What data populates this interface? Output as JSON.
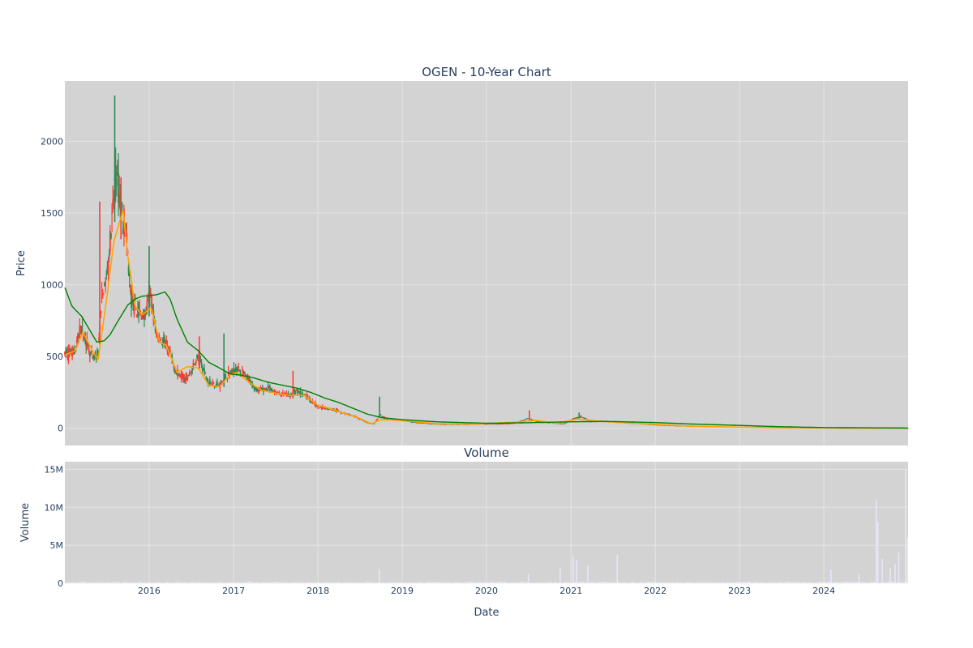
{
  "chart_data": [
    {
      "type": "candlestick",
      "title": "OGEN - 10-Year Chart",
      "ylabel": "Price",
      "ylim": [
        -120,
        2420
      ],
      "yticks": [
        0,
        500,
        1000,
        1500,
        2000
      ],
      "x_range": [
        "2015-01-01",
        "2024-12-31"
      ],
      "grid": true,
      "colors": {
        "up": "#2e8b57",
        "down": "#ff3b30",
        "ma_short": "#ffa500",
        "ma_long": "#008000",
        "background": "#d3d3d3"
      },
      "price_anchors": [
        [
          "2015-01-01",
          520
        ],
        [
          "2015-02-15",
          540
        ],
        [
          "2015-03-10",
          700
        ],
        [
          "2015-04-01",
          620
        ],
        [
          "2015-05-01",
          480
        ],
        [
          "2015-05-25",
          520
        ],
        [
          "2015-06-10",
          900
        ],
        [
          "2015-07-01",
          1050
        ],
        [
          "2015-07-25",
          1450
        ],
        [
          "2015-08-10",
          1800
        ],
        [
          "2015-09-01",
          1550
        ],
        [
          "2015-09-20",
          1400
        ],
        [
          "2015-10-15",
          900
        ],
        [
          "2015-11-15",
          800
        ],
        [
          "2015-12-15",
          780
        ],
        [
          "2016-01-05",
          950
        ],
        [
          "2016-02-01",
          650
        ],
        [
          "2016-03-15",
          580
        ],
        [
          "2016-05-01",
          380
        ],
        [
          "2016-06-15",
          350
        ],
        [
          "2016-08-01",
          500
        ],
        [
          "2016-09-15",
          320
        ],
        [
          "2016-11-01",
          300
        ],
        [
          "2016-12-01",
          360
        ],
        [
          "2017-01-15",
          420
        ],
        [
          "2017-03-01",
          350
        ],
        [
          "2017-04-15",
          260
        ],
        [
          "2017-06-01",
          280
        ],
        [
          "2017-07-15",
          240
        ],
        [
          "2017-09-01",
          230
        ],
        [
          "2017-10-01",
          260
        ],
        [
          "2017-11-15",
          220
        ],
        [
          "2018-01-01",
          150
        ],
        [
          "2018-02-01",
          140
        ],
        [
          "2018-03-15",
          130
        ],
        [
          "2018-05-01",
          100
        ],
        [
          "2018-06-15",
          80
        ],
        [
          "2018-08-01",
          40
        ],
        [
          "2018-09-01",
          30
        ],
        [
          "2018-09-25",
          90
        ],
        [
          "2018-11-01",
          60
        ],
        [
          "2018-12-15",
          60
        ],
        [
          "2019-03-01",
          40
        ],
        [
          "2019-06-01",
          30
        ],
        [
          "2019-09-01",
          28
        ],
        [
          "2019-12-01",
          30
        ],
        [
          "2020-03-01",
          30
        ],
        [
          "2020-05-01",
          35
        ],
        [
          "2020-07-01",
          70
        ],
        [
          "2020-08-15",
          45
        ],
        [
          "2020-10-01",
          40
        ],
        [
          "2020-12-01",
          30
        ],
        [
          "2021-01-15",
          70
        ],
        [
          "2021-02-15",
          80
        ],
        [
          "2021-04-01",
          50
        ],
        [
          "2021-07-01",
          45
        ],
        [
          "2021-10-01",
          35
        ],
        [
          "2022-01-01",
          25
        ],
        [
          "2022-06-01",
          15
        ],
        [
          "2023-01-01",
          10
        ],
        [
          "2023-06-01",
          5
        ],
        [
          "2024-01-01",
          3
        ],
        [
          "2024-06-01",
          2
        ],
        [
          "2024-12-31",
          1
        ]
      ],
      "ma_short": [
        [
          "2015-01-01",
          510
        ],
        [
          "2015-02-15",
          540
        ],
        [
          "2015-03-20",
          670
        ],
        [
          "2015-05-01",
          540
        ],
        [
          "2015-05-25",
          480
        ],
        [
          "2015-07-01",
          900
        ],
        [
          "2015-08-01",
          1300
        ],
        [
          "2015-09-10",
          1520
        ],
        [
          "2015-10-01",
          1200
        ],
        [
          "2015-11-01",
          850
        ],
        [
          "2015-12-01",
          790
        ],
        [
          "2016-01-10",
          840
        ],
        [
          "2016-02-15",
          600
        ],
        [
          "2016-03-15",
          580
        ],
        [
          "2016-05-01",
          390
        ],
        [
          "2016-06-15",
          430
        ],
        [
          "2016-08-01",
          420
        ],
        [
          "2016-09-15",
          300
        ],
        [
          "2016-11-01",
          290
        ],
        [
          "2016-12-15",
          370
        ],
        [
          "2017-01-15",
          390
        ],
        [
          "2017-03-01",
          330
        ],
        [
          "2017-05-01",
          265
        ],
        [
          "2017-07-01",
          245
        ],
        [
          "2017-09-01",
          230
        ],
        [
          "2017-11-01",
          230
        ],
        [
          "2018-01-01",
          160
        ],
        [
          "2018-03-01",
          135
        ],
        [
          "2018-05-01",
          100
        ],
        [
          "2018-07-01",
          70
        ],
        [
          "2018-08-20",
          30
        ],
        [
          "2018-10-01",
          60
        ],
        [
          "2019-01-01",
          55
        ],
        [
          "2019-06-01",
          32
        ],
        [
          "2019-12-01",
          30
        ],
        [
          "2020-06-01",
          45
        ],
        [
          "2020-08-01",
          55
        ],
        [
          "2020-11-01",
          35
        ],
        [
          "2021-02-01",
          65
        ],
        [
          "2021-05-01",
          50
        ],
        [
          "2021-10-01",
          35
        ],
        [
          "2022-06-01",
          15
        ],
        [
          "2023-01-01",
          8
        ],
        [
          "2023-06-01",
          4
        ],
        [
          "2024-01-01",
          3
        ],
        [
          "2024-12-31",
          1
        ]
      ],
      "ma_long": [
        [
          "2015-01-01",
          980
        ],
        [
          "2015-02-01",
          850
        ],
        [
          "2015-03-15",
          780
        ],
        [
          "2015-05-01",
          650
        ],
        [
          "2015-05-20",
          600
        ],
        [
          "2015-06-20",
          610
        ],
        [
          "2015-07-15",
          650
        ],
        [
          "2015-08-20",
          750
        ],
        [
          "2015-10-01",
          860
        ],
        [
          "2015-11-01",
          900
        ],
        [
          "2015-12-01",
          920
        ],
        [
          "2016-02-01",
          930
        ],
        [
          "2016-03-10",
          950
        ],
        [
          "2016-04-01",
          900
        ],
        [
          "2016-05-01",
          760
        ],
        [
          "2016-06-15",
          600
        ],
        [
          "2016-08-01",
          540
        ],
        [
          "2016-09-15",
          460
        ],
        [
          "2016-11-01",
          420
        ],
        [
          "2016-12-15",
          380
        ],
        [
          "2017-02-01",
          370
        ],
        [
          "2017-04-01",
          350
        ],
        [
          "2017-06-01",
          320
        ],
        [
          "2017-08-01",
          300
        ],
        [
          "2017-10-01",
          280
        ],
        [
          "2017-12-01",
          250
        ],
        [
          "2018-02-01",
          210
        ],
        [
          "2018-04-01",
          180
        ],
        [
          "2018-06-01",
          140
        ],
        [
          "2018-08-01",
          100
        ],
        [
          "2018-10-01",
          75
        ],
        [
          "2019-01-01",
          60
        ],
        [
          "2019-06-01",
          45
        ],
        [
          "2020-01-01",
          35
        ],
        [
          "2020-06-01",
          38
        ],
        [
          "2021-01-01",
          45
        ],
        [
          "2021-06-01",
          48
        ],
        [
          "2022-01-01",
          40
        ],
        [
          "2022-06-01",
          30
        ],
        [
          "2023-01-01",
          20
        ],
        [
          "2023-06-01",
          12
        ],
        [
          "2024-01-01",
          5
        ],
        [
          "2024-12-31",
          2
        ]
      ],
      "spikes": [
        [
          "2015-06-01",
          1580
        ],
        [
          "2015-08-05",
          2320
        ],
        [
          "2015-09-01",
          1750
        ],
        [
          "2016-01-01",
          1270
        ],
        [
          "2016-08-05",
          640
        ],
        [
          "2016-11-20",
          660
        ],
        [
          "2017-09-15",
          400
        ],
        [
          "2018-09-25",
          220
        ],
        [
          "2020-07-05",
          125
        ],
        [
          "2021-02-05",
          110
        ]
      ]
    },
    {
      "type": "bar",
      "title": "Volume",
      "ylabel": "Volume",
      "xlabel": "Date",
      "ylim": [
        0,
        16000000
      ],
      "yticks": [
        0,
        5000000,
        10000000,
        15000000
      ],
      "ytick_labels": [
        "0",
        "5M",
        "10M",
        "15M"
      ],
      "xticks": [
        "2016",
        "2017",
        "2018",
        "2019",
        "2020",
        "2021",
        "2022",
        "2023",
        "2024"
      ],
      "bar_color": "#e6e6fa",
      "bars": [
        [
          "2018-09-25",
          1800000
        ],
        [
          "2020-07-01",
          1200000
        ],
        [
          "2020-11-15",
          2000000
        ],
        [
          "2021-01-10",
          3500000
        ],
        [
          "2021-01-25",
          3000000
        ],
        [
          "2021-03-15",
          2300000
        ],
        [
          "2021-07-20",
          3700000
        ],
        [
          "2024-02-01",
          1800000
        ],
        [
          "2024-06-01",
          1200000
        ],
        [
          "2024-08-15",
          11000000
        ],
        [
          "2024-08-22",
          8000000
        ],
        [
          "2024-09-10",
          3200000
        ],
        [
          "2024-10-15",
          2000000
        ],
        [
          "2024-11-05",
          2500000
        ],
        [
          "2024-11-20",
          4000000
        ],
        [
          "2024-12-20",
          15000000
        ],
        [
          "2024-12-28",
          6000000
        ]
      ]
    }
  ]
}
